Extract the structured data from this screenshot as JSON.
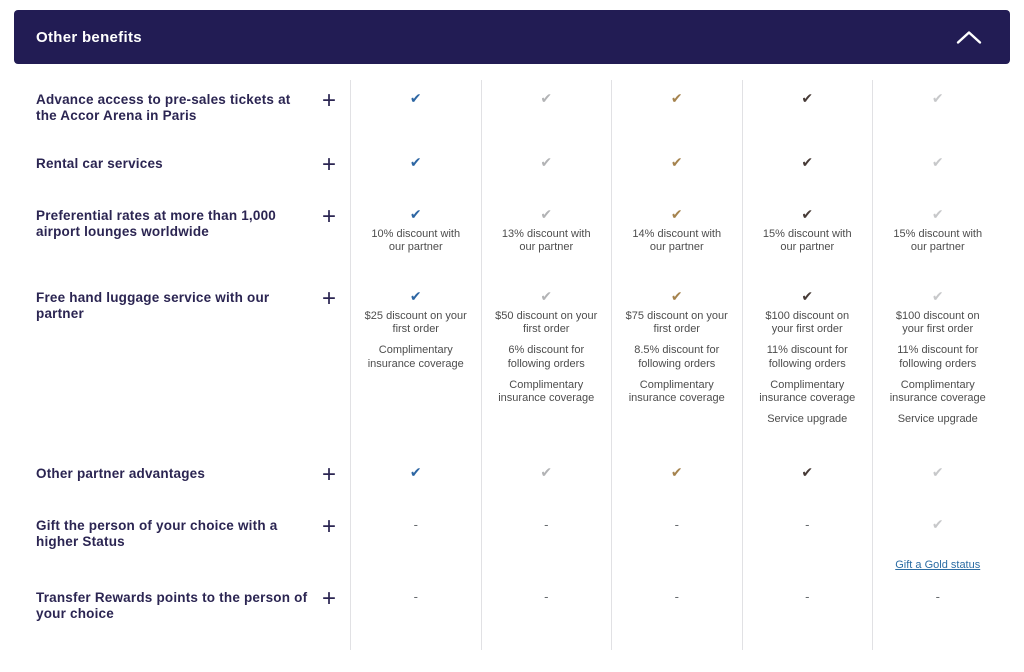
{
  "header": {
    "title": "Other benefits",
    "collapse_icon": "chevron-up-icon"
  },
  "colors": {
    "header_bg": "#221c54",
    "label_text": "#2b2552",
    "cell_text": "#4d4d4d",
    "divider": "#e1e1e4",
    "link": "#2c6da4",
    "tier_check_colors": [
      "#2d66a3",
      "#b2b3b5",
      "#a5834e",
      "#463a36",
      "#c7c8ca"
    ]
  },
  "table": {
    "check_glyph": "✔",
    "dash_glyph": "-",
    "column_count": 5,
    "rows": [
      {
        "label": "Advance access to pre-sales tickets at the Accor Arena in Paris",
        "expand_label": "+",
        "cells": [
          {
            "check": true
          },
          {
            "check": true
          },
          {
            "check": true
          },
          {
            "check": true
          },
          {
            "check": true
          }
        ]
      },
      {
        "label": "Rental car services",
        "expand_label": "+",
        "cells": [
          {
            "check": true
          },
          {
            "check": true
          },
          {
            "check": true
          },
          {
            "check": true
          },
          {
            "check": true
          }
        ]
      },
      {
        "label": "Preferential rates at more than 1,000 airport lounges worldwide",
        "expand_label": "+",
        "cells": [
          {
            "check": true,
            "items": [
              "10% discount with our partner"
            ]
          },
          {
            "check": true,
            "items": [
              "13% discount with our partner"
            ]
          },
          {
            "check": true,
            "items": [
              "14% discount with our partner"
            ]
          },
          {
            "check": true,
            "items": [
              "15% discount with our partner"
            ]
          },
          {
            "check": true,
            "items": [
              "15% discount with our partner"
            ]
          }
        ]
      },
      {
        "label": "Free hand luggage service with our partner",
        "expand_label": "+",
        "cells": [
          {
            "check": true,
            "items": [
              "$25 discount on your first order",
              "Complimentary insurance coverage"
            ]
          },
          {
            "check": true,
            "items": [
              "$50 discount on your first order",
              "6% discount for following orders",
              "Complimentary insurance coverage"
            ]
          },
          {
            "check": true,
            "items": [
              "$75 discount on your first order",
              "8.5% discount for following orders",
              "Complimentary insurance coverage"
            ]
          },
          {
            "check": true,
            "items": [
              "$100 discount on your first order",
              "11% discount for following orders",
              "Complimentary insurance coverage",
              "Service upgrade"
            ]
          },
          {
            "check": true,
            "items": [
              "$100 discount on your first order",
              "11% discount for following orders",
              "Complimentary insurance coverage",
              "Service upgrade"
            ]
          }
        ]
      },
      {
        "label": "Other partner advantages",
        "expand_label": "+",
        "cells": [
          {
            "check": true
          },
          {
            "check": true
          },
          {
            "check": true
          },
          {
            "check": true
          },
          {
            "check": true
          }
        ]
      },
      {
        "label": "Gift the person of your choice with a higher Status",
        "expand_label": "+",
        "cells": [
          {
            "dash": true
          },
          {
            "dash": true
          },
          {
            "dash": true
          },
          {
            "dash": true
          },
          {
            "check": true,
            "link": "Gift a Gold status"
          }
        ]
      },
      {
        "label": "Transfer Rewards points to the person of your choice",
        "expand_label": "+",
        "cells": [
          {
            "dash": true
          },
          {
            "dash": true
          },
          {
            "dash": true
          },
          {
            "dash": true
          },
          {
            "dash": true
          }
        ]
      }
    ]
  }
}
